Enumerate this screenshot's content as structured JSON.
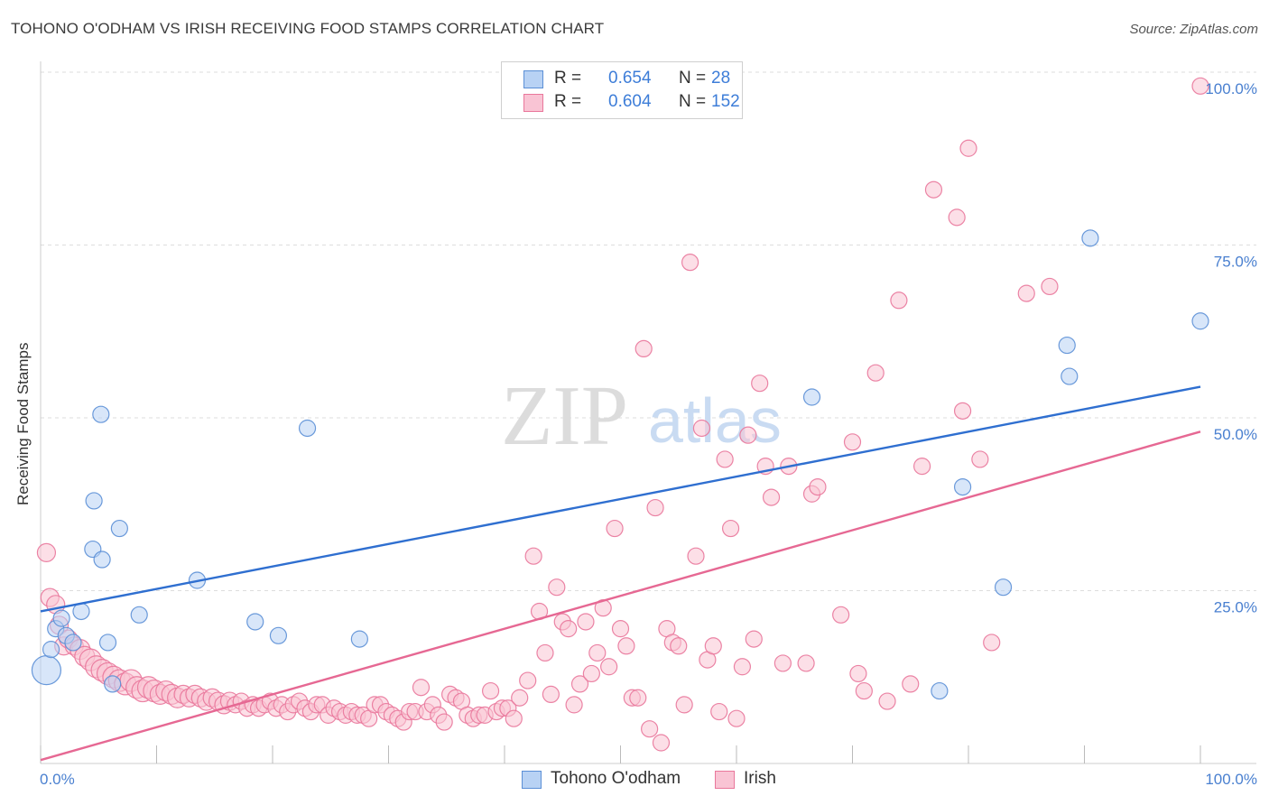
{
  "title": "TOHONO O'ODHAM VS IRISH RECEIVING FOOD STAMPS CORRELATION CHART",
  "source": "Source: ZipAtlas.com",
  "watermark": {
    "zip": "ZIP",
    "atlas": "atlas"
  },
  "legend": {
    "rows": [
      {
        "r_label": "R =",
        "r_value": "0.654",
        "n_label": "N =",
        "n_value": "28"
      },
      {
        "r_label": "R =",
        "r_value": "0.604",
        "n_label": "N =",
        "n_value": "152"
      }
    ],
    "bottom": [
      "Tohono O'odham",
      "Irish"
    ]
  },
  "colors": {
    "blue_fill": "#b8d2f4",
    "blue_stroke": "#5b8fd6",
    "blue_line": "#2f6fd0",
    "pink_fill": "#f9c4d4",
    "pink_stroke": "#e9779b",
    "pink_line": "#e66893",
    "tick_label": "#4a80d0",
    "grid": "#dddddd"
  },
  "chart_data": {
    "type": "scatter",
    "title": "TOHONO O'ODHAM VS IRISH RECEIVING FOOD STAMPS CORRELATION CHART",
    "xlabel": "",
    "ylabel": "Receiving Food Stamps",
    "xlim": [
      0,
      100
    ],
    "ylim": [
      0,
      100
    ],
    "x_tick_labels": [
      "0.0%",
      "100.0%"
    ],
    "y_tick_labels": [
      "25.0%",
      "50.0%",
      "75.0%",
      "100.0%"
    ],
    "y_ticks": [
      25,
      50,
      75,
      100
    ],
    "grid": true,
    "legend_position": "top-center",
    "series": [
      {
        "name": "Tohono O'odham",
        "r": 0.654,
        "n": 28,
        "trend": [
          [
            0,
            22
          ],
          [
            100,
            54.5
          ]
        ],
        "points": [
          [
            0.5,
            13.5,
            16
          ],
          [
            0.9,
            16.5,
            9
          ],
          [
            1.3,
            19.5,
            9
          ],
          [
            1.8,
            21,
            9
          ],
          [
            2.2,
            18.5,
            9
          ],
          [
            2.8,
            17.5,
            9
          ],
          [
            3.5,
            22,
            9
          ],
          [
            4.5,
            31,
            9
          ],
          [
            4.6,
            38,
            9
          ],
          [
            5.2,
            50.5,
            9
          ],
          [
            5.3,
            29.5,
            9
          ],
          [
            5.8,
            17.5,
            9
          ],
          [
            6.2,
            11.5,
            9
          ],
          [
            6.8,
            34,
            9
          ],
          [
            8.5,
            21.5,
            9
          ],
          [
            13.5,
            26.5,
            9
          ],
          [
            18.5,
            20.5,
            9
          ],
          [
            20.5,
            18.5,
            9
          ],
          [
            23,
            48.5,
            9
          ],
          [
            27.5,
            18,
            9
          ],
          [
            66.5,
            53,
            9
          ],
          [
            77.5,
            10.5,
            9
          ],
          [
            79.5,
            40,
            9
          ],
          [
            83,
            25.5,
            9
          ],
          [
            88.5,
            60.5,
            9
          ],
          [
            88.7,
            56,
            9
          ],
          [
            90.5,
            76,
            9
          ],
          [
            100,
            64,
            9
          ]
        ]
      },
      {
        "name": "Irish",
        "r": 0.604,
        "n": 152,
        "trend": [
          [
            0,
            0.5
          ],
          [
            100,
            48
          ]
        ],
        "points": [
          [
            0.5,
            30.5,
            10
          ],
          [
            0.8,
            24,
            10
          ],
          [
            1.3,
            23,
            10
          ],
          [
            1.6,
            20,
            10
          ],
          [
            2,
            17,
            10
          ],
          [
            2.4,
            18,
            10
          ],
          [
            2.9,
            17,
            10
          ],
          [
            3.4,
            16.5,
            11
          ],
          [
            3.8,
            15.5,
            11
          ],
          [
            4.3,
            15,
            12
          ],
          [
            4.8,
            14,
            12
          ],
          [
            5.3,
            13.5,
            12
          ],
          [
            5.8,
            13,
            12
          ],
          [
            6.3,
            12.5,
            12
          ],
          [
            6.8,
            12,
            12
          ],
          [
            7.3,
            11.5,
            12
          ],
          [
            7.8,
            12,
            12
          ],
          [
            8.3,
            11,
            12
          ],
          [
            8.8,
            10.5,
            12
          ],
          [
            9.3,
            11,
            12
          ],
          [
            9.8,
            10.5,
            12
          ],
          [
            10.3,
            10,
            11
          ],
          [
            10.8,
            10.5,
            11
          ],
          [
            11.3,
            10,
            11
          ],
          [
            11.8,
            9.5,
            11
          ],
          [
            12.3,
            10,
            10
          ],
          [
            12.8,
            9.5,
            10
          ],
          [
            13.3,
            10,
            10
          ],
          [
            13.8,
            9.5,
            10
          ],
          [
            14.3,
            9,
            10
          ],
          [
            14.8,
            9.5,
            10
          ],
          [
            15.3,
            9,
            10
          ],
          [
            15.8,
            8.5,
            10
          ],
          [
            16.3,
            9,
            10
          ],
          [
            16.8,
            8.5,
            9
          ],
          [
            17.3,
            9,
            9
          ],
          [
            17.8,
            8,
            9
          ],
          [
            18.3,
            8.5,
            9
          ],
          [
            18.8,
            8,
            9
          ],
          [
            19.3,
            8.5,
            9
          ],
          [
            19.8,
            9,
            9
          ],
          [
            20.3,
            8,
            9
          ],
          [
            20.8,
            8.5,
            9
          ],
          [
            21.3,
            7.5,
            9
          ],
          [
            21.8,
            8.5,
            9
          ],
          [
            22.3,
            9,
            9
          ],
          [
            22.8,
            8,
            9
          ],
          [
            23.3,
            7.5,
            9
          ],
          [
            23.8,
            8.5,
            9
          ],
          [
            24.3,
            8.5,
            9
          ],
          [
            24.8,
            7,
            9
          ],
          [
            25.3,
            8,
            9
          ],
          [
            25.8,
            7.5,
            9
          ],
          [
            26.3,
            7,
            9
          ],
          [
            26.8,
            7.5,
            9
          ],
          [
            27.3,
            7,
            9
          ],
          [
            27.8,
            7,
            9
          ],
          [
            28.3,
            6.5,
            9
          ],
          [
            28.8,
            8.5,
            9
          ],
          [
            29.3,
            8.5,
            9
          ],
          [
            29.8,
            7.5,
            9
          ],
          [
            30.3,
            7,
            9
          ],
          [
            30.8,
            6.5,
            9
          ],
          [
            31.3,
            6,
            9
          ],
          [
            31.8,
            7.5,
            9
          ],
          [
            32.3,
            7.5,
            9
          ],
          [
            32.8,
            11,
            9
          ],
          [
            33.3,
            7.5,
            9
          ],
          [
            33.8,
            8.5,
            9
          ],
          [
            34.3,
            7,
            9
          ],
          [
            34.8,
            6,
            9
          ],
          [
            35.3,
            10,
            9
          ],
          [
            35.8,
            9.5,
            9
          ],
          [
            36.3,
            9,
            9
          ],
          [
            36.8,
            7,
            9
          ],
          [
            37.3,
            6.5,
            9
          ],
          [
            37.8,
            7,
            9
          ],
          [
            38.3,
            7,
            9
          ],
          [
            38.8,
            10.5,
            9
          ],
          [
            39.3,
            7.5,
            9
          ],
          [
            39.8,
            8,
            9
          ],
          [
            40.3,
            8,
            9
          ],
          [
            40.8,
            6.5,
            9
          ],
          [
            41.3,
            9.5,
            9
          ],
          [
            42,
            12,
            9
          ],
          [
            42.5,
            30,
            9
          ],
          [
            43,
            22,
            9
          ],
          [
            43.5,
            16,
            9
          ],
          [
            44,
            10,
            9
          ],
          [
            44.5,
            25.5,
            9
          ],
          [
            45,
            20.5,
            9
          ],
          [
            45.5,
            19.5,
            9
          ],
          [
            46,
            8.5,
            9
          ],
          [
            46.5,
            11.5,
            9
          ],
          [
            47,
            20.5,
            9
          ],
          [
            47.5,
            13,
            9
          ],
          [
            48,
            16,
            9
          ],
          [
            48.5,
            22.5,
            9
          ],
          [
            49,
            14,
            9
          ],
          [
            49.5,
            34,
            9
          ],
          [
            50,
            19.5,
            9
          ],
          [
            50.5,
            17,
            9
          ],
          [
            51,
            9.5,
            9
          ],
          [
            51.5,
            9.5,
            9
          ],
          [
            52,
            60,
            9
          ],
          [
            52.5,
            5,
            9
          ],
          [
            53,
            37,
            9
          ],
          [
            53.5,
            3,
            9
          ],
          [
            54,
            19.5,
            9
          ],
          [
            54.5,
            17.5,
            9
          ],
          [
            55,
            17,
            9
          ],
          [
            55.5,
            8.5,
            9
          ],
          [
            56,
            72.5,
            9
          ],
          [
            56.5,
            30,
            9
          ],
          [
            57,
            48.5,
            9
          ],
          [
            57.5,
            15,
            9
          ],
          [
            58,
            17,
            9
          ],
          [
            58.5,
            7.5,
            9
          ],
          [
            59,
            44,
            9
          ],
          [
            59.5,
            34,
            9
          ],
          [
            60,
            6.5,
            9
          ],
          [
            60.5,
            14,
            9
          ],
          [
            61,
            47.5,
            9
          ],
          [
            61.5,
            18,
            9
          ],
          [
            62,
            55,
            9
          ],
          [
            62.5,
            43,
            9
          ],
          [
            63,
            38.5,
            9
          ],
          [
            64,
            14.5,
            9
          ],
          [
            64.5,
            43,
            9
          ],
          [
            66,
            14.5,
            9
          ],
          [
            66.5,
            39,
            9
          ],
          [
            67,
            40,
            9
          ],
          [
            69,
            21.5,
            9
          ],
          [
            70,
            46.5,
            9
          ],
          [
            70.5,
            13,
            9
          ],
          [
            71,
            10.5,
            9
          ],
          [
            72,
            56.5,
            9
          ],
          [
            73,
            9,
            9
          ],
          [
            74,
            67,
            9
          ],
          [
            75,
            11.5,
            9
          ],
          [
            76,
            43,
            9
          ],
          [
            77,
            83,
            9
          ],
          [
            79,
            79,
            9
          ],
          [
            79.5,
            51,
            9
          ],
          [
            80,
            89,
            9
          ],
          [
            81,
            44,
            9
          ],
          [
            82,
            17.5,
            9
          ],
          [
            85,
            68,
            9
          ],
          [
            87,
            69,
            9
          ],
          [
            100,
            98,
            9
          ]
        ]
      }
    ]
  }
}
